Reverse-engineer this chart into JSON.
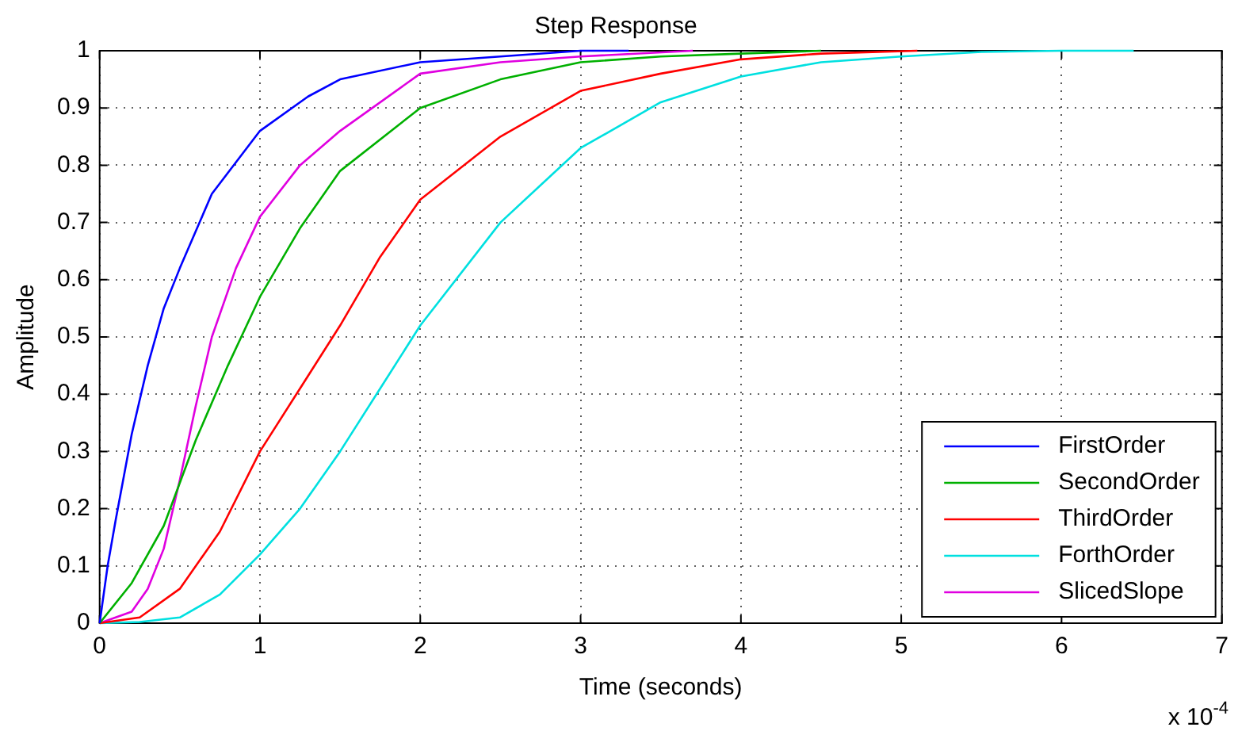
{
  "chart_data": {
    "type": "line",
    "title": "Step Response",
    "xlabel": "Time (seconds)",
    "ylabel": "Amplitude",
    "annotations": [
      "x 10$^{-4}$"
    ],
    "series": [
      {
        "name": "FirstOrder",
        "color": "#0000ff",
        "x": [
          0,
          0.05,
          0.1,
          0.2,
          0.3,
          0.4,
          0.5,
          0.7,
          1,
          1.3,
          1.5,
          2,
          2.5,
          3,
          3.3
        ],
        "values": [
          0,
          0.1,
          0.18,
          0.33,
          0.45,
          0.55,
          0.62,
          0.75,
          0.86,
          0.92,
          0.95,
          0.98,
          0.99,
          1.0,
          1.0
        ]
      },
      {
        "name": "SecondOrder",
        "color": "#00b000",
        "x": [
          0,
          0.2,
          0.4,
          0.6,
          0.8,
          1,
          1.25,
          1.5,
          2,
          2.5,
          3,
          3.5,
          4,
          4.5
        ],
        "values": [
          0,
          0.07,
          0.17,
          0.32,
          0.45,
          0.57,
          0.69,
          0.79,
          0.9,
          0.95,
          0.98,
          0.99,
          0.995,
          1.0
        ]
      },
      {
        "name": "ThirdOrder",
        "color": "#ff0000",
        "x": [
          0,
          0.25,
          0.5,
          0.75,
          1,
          1.25,
          1.5,
          1.75,
          2,
          2.5,
          3,
          3.5,
          4,
          4.5,
          5.1
        ],
        "values": [
          0,
          0.01,
          0.06,
          0.16,
          0.3,
          0.41,
          0.52,
          0.64,
          0.74,
          0.85,
          0.93,
          0.96,
          0.985,
          0.995,
          1.0
        ]
      },
      {
        "name": "ForthOrder",
        "color": "#00e0e0",
        "x": [
          0,
          0.25,
          0.5,
          0.75,
          1,
          1.25,
          1.5,
          1.75,
          2,
          2.5,
          3,
          3.5,
          4,
          4.5,
          5,
          5.5,
          6,
          6.45
        ],
        "values": [
          0,
          0.002,
          0.01,
          0.05,
          0.12,
          0.2,
          0.3,
          0.41,
          0.52,
          0.7,
          0.83,
          0.91,
          0.955,
          0.98,
          0.99,
          0.998,
          1.0,
          1.0
        ]
      },
      {
        "name": "SlicedSlope",
        "color": "#e000e0",
        "x": [
          0,
          0.2,
          0.3,
          0.4,
          0.5,
          0.6,
          0.7,
          0.85,
          1,
          1.25,
          1.5,
          2,
          2.5,
          3,
          3.7
        ],
        "values": [
          0,
          0.02,
          0.06,
          0.13,
          0.25,
          0.38,
          0.5,
          0.62,
          0.71,
          0.8,
          0.86,
          0.96,
          0.98,
          0.99,
          1.0
        ]
      }
    ],
    "xlim": [
      0,
      7
    ],
    "xticks": [
      0,
      1,
      2,
      3,
      4,
      5,
      6,
      7
    ],
    "ylim": [
      0,
      1
    ],
    "yticks": [
      0,
      0.1,
      0.2,
      0.3,
      0.4,
      0.5,
      0.6,
      0.7,
      0.8,
      0.9,
      1
    ],
    "grid": true,
    "legend": "bottom right",
    "marker": "none",
    "line_style": "solid"
  }
}
